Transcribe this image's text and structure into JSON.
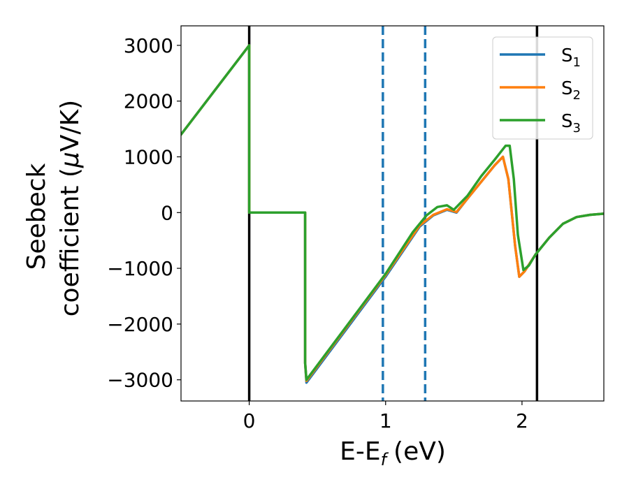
{
  "chart_data": {
    "type": "line",
    "xlabel": "E-E",
    "xlabel_sub": "f",
    "xlabel_unit": "(eV)",
    "ylabel_line1": "Seebeck",
    "ylabel_line2": "coefficient  (",
    "ylabel_mu": "μ",
    "ylabel_unit": "V/K)",
    "xlim": [
      -0.5,
      2.6
    ],
    "ylim": [
      -3380,
      3350
    ],
    "x_ticks": [
      0,
      1,
      2
    ],
    "x_tick_labels": [
      "0",
      "1",
      "2"
    ],
    "y_ticks": [
      3000,
      2000,
      1000,
      0,
      -1000,
      -2000,
      -3000
    ],
    "y_tick_labels": [
      "3000",
      "2000",
      "1000",
      "0",
      "−1000",
      "−2000",
      "−3000"
    ],
    "legend_position": "upper-right",
    "vertical_lines": [
      {
        "x": 0.0,
        "style": "solid",
        "color": "#000000"
      },
      {
        "x": 2.11,
        "style": "solid",
        "color": "#000000"
      },
      {
        "x": 0.98,
        "style": "dashed",
        "color": "#1f77b4"
      },
      {
        "x": 1.29,
        "style": "dashed",
        "color": "#1f77b4"
      }
    ],
    "series": [
      {
        "name": "S",
        "subscript": "1",
        "color": "#1f77b4",
        "x": [
          -0.5,
          0.0,
          0.0,
          0.41,
          0.41,
          0.42,
          1.0,
          1.25,
          1.35,
          1.45,
          1.52,
          1.6,
          1.7,
          1.8,
          1.86,
          1.9,
          1.95,
          1.98,
          2.02,
          2.1,
          2.2,
          2.3,
          2.4,
          2.5,
          2.6
        ],
        "values": [
          1400,
          3000,
          0,
          0,
          -2700,
          -3050,
          -1150,
          -250,
          -50,
          50,
          0,
          250,
          550,
          850,
          1000,
          600,
          -600,
          -1150,
          -1050,
          -750,
          -450,
          -200,
          -80,
          -40,
          -20
        ]
      },
      {
        "name": "S",
        "subscript": "2",
        "color": "#ff7f0e",
        "x": [
          -0.5,
          0.0,
          0.0,
          0.41,
          0.41,
          0.42,
          1.0,
          1.25,
          1.35,
          1.45,
          1.52,
          1.6,
          1.7,
          1.8,
          1.86,
          1.9,
          1.95,
          1.98,
          2.02,
          2.1,
          2.2,
          2.3,
          2.4,
          2.5,
          2.6
        ],
        "values": [
          1400,
          3000,
          0,
          0,
          -2700,
          -3020,
          -1120,
          -230,
          -40,
          60,
          10,
          250,
          550,
          850,
          1000,
          600,
          -600,
          -1150,
          -1050,
          -750,
          -450,
          -200,
          -80,
          -40,
          -20
        ]
      },
      {
        "name": "S",
        "subscript": "3",
        "color": "#2ca02c",
        "x": [
          -0.5,
          0.0,
          0.0,
          0.41,
          0.41,
          0.42,
          1.0,
          1.2,
          1.3,
          1.38,
          1.45,
          1.5,
          1.6,
          1.7,
          1.8,
          1.88,
          1.91,
          1.94,
          1.97,
          2.01,
          2.05,
          2.1,
          2.2,
          2.3,
          2.4,
          2.5,
          2.6
        ],
        "values": [
          1400,
          3000,
          0,
          0,
          -2700,
          -3000,
          -1100,
          -350,
          -50,
          100,
          130,
          50,
          300,
          650,
          950,
          1200,
          1200,
          600,
          -400,
          -1030,
          -950,
          -750,
          -450,
          -200,
          -80,
          -40,
          -20
        ]
      }
    ]
  }
}
